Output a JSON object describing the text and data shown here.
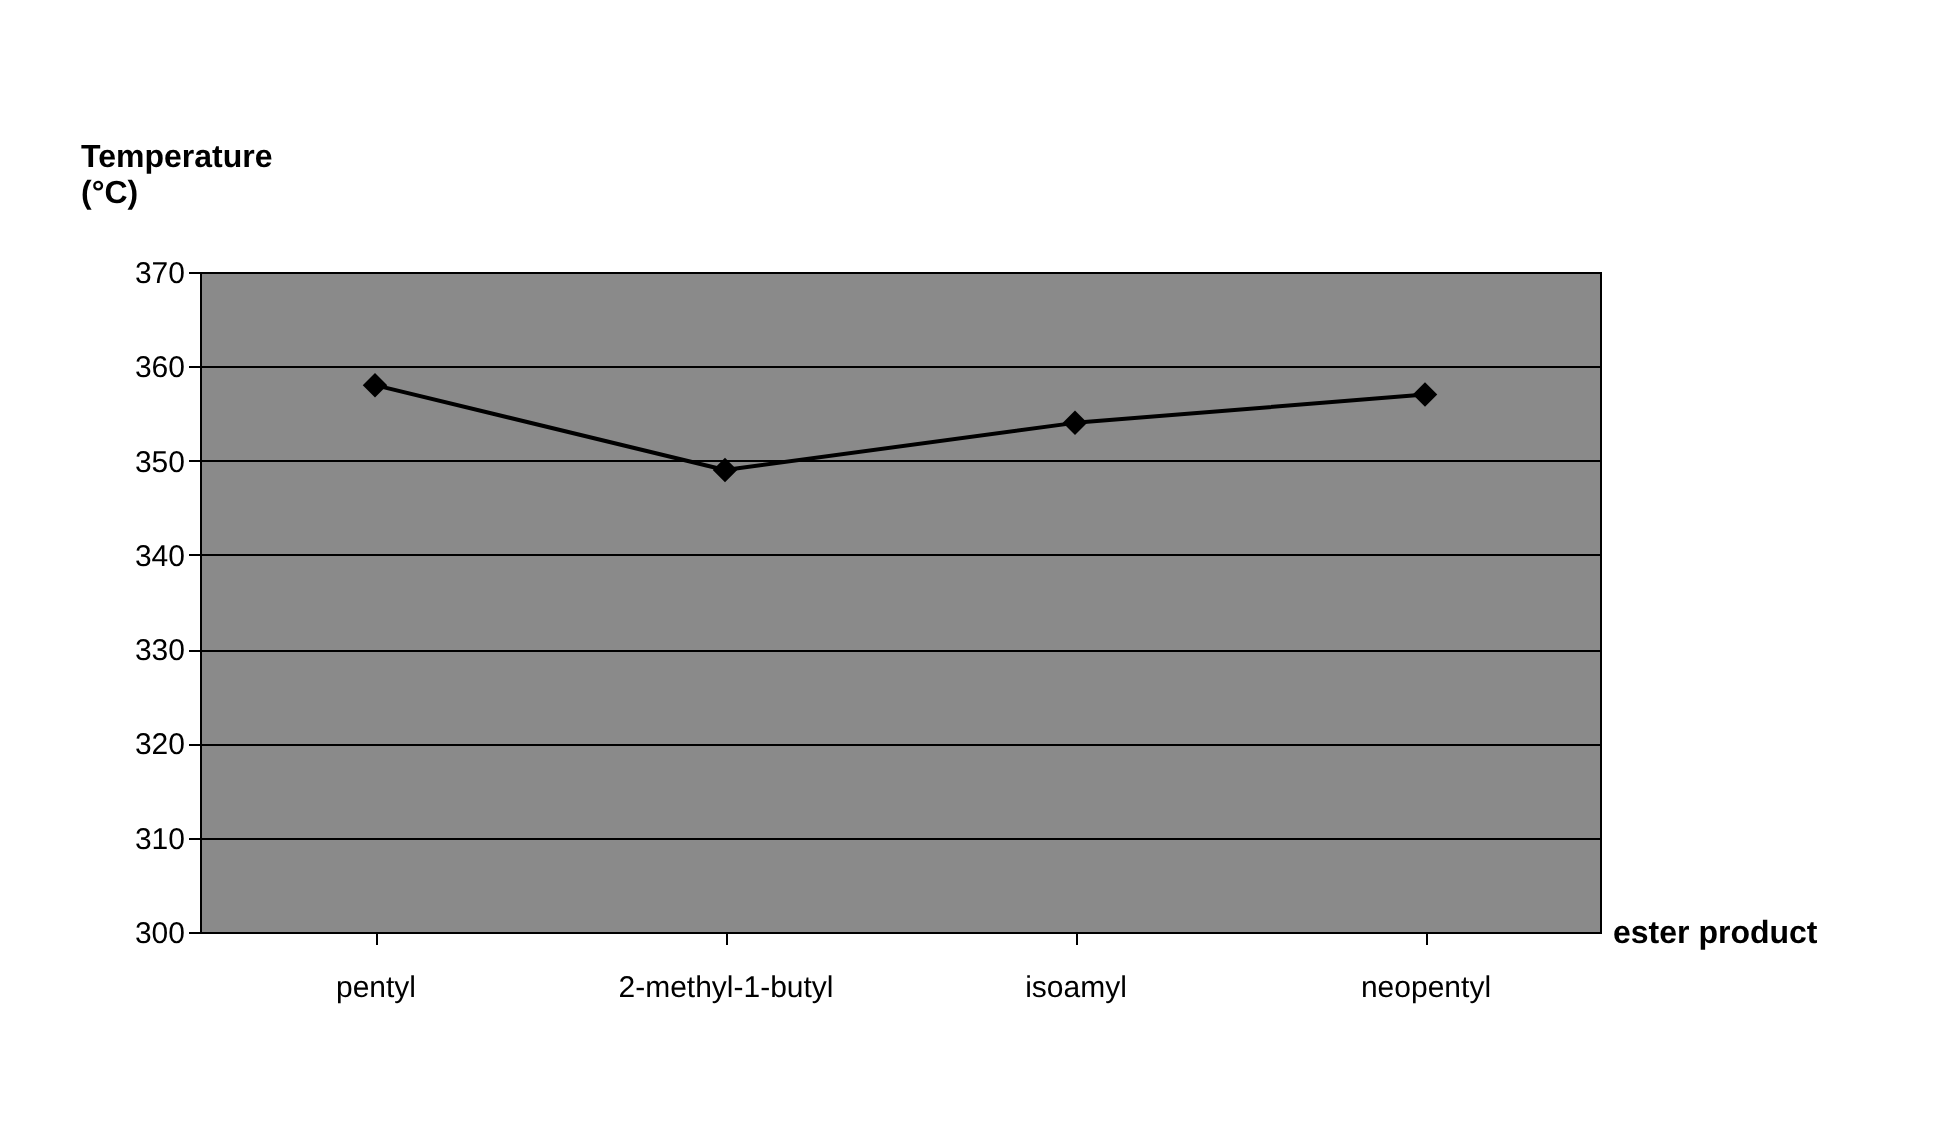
{
  "chart_data": {
    "type": "line",
    "xlabel": "ester product",
    "ylabel": "Temperature (°C)",
    "categories": [
      "pentyl",
      "2-methyl-1-butyl",
      "isoamyl",
      "neopentyl"
    ],
    "series": [
      {
        "color": "#000000",
        "values": [
          358,
          349,
          354,
          357
        ]
      }
    ],
    "ylim": [
      300,
      370
    ],
    "yticks": [
      300,
      310,
      320,
      330,
      340,
      350,
      360,
      370
    ],
    "grid": "y",
    "marker": "diamond",
    "line_style": "solid",
    "legend": false
  }
}
